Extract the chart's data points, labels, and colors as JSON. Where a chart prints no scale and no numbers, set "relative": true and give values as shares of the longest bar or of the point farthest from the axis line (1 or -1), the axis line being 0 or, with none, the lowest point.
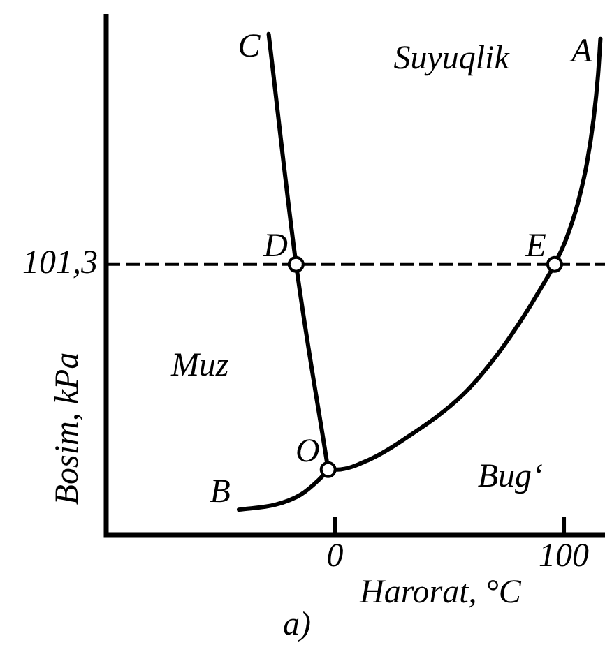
{
  "chart_data": {
    "type": "line",
    "relative": true,
    "xlabel": "Harorat, °C",
    "ylabel": "Bosim, kPa",
    "xlim": [
      -100,
      118
    ],
    "xticks": [
      0,
      100
    ],
    "ref_lines": [
      {
        "axis": "y",
        "value": 0.54,
        "line_style": "dashed",
        "color": "#000000"
      }
    ],
    "series": [
      {
        "color": "#000000",
        "marker": "none",
        "x": [
          -42,
          -26,
          -15,
          -7,
          -3
        ],
        "values": [
          0.05,
          0.06,
          0.08,
          0.11,
          0.13
        ]
      },
      {
        "color": "#000000",
        "marker": "none",
        "x": [
          -29,
          -17,
          -3
        ],
        "values": [
          1,
          0.54,
          0.13
        ]
      },
      {
        "color": "#000000",
        "marker": "none",
        "x": [
          -3,
          1,
          15,
          30,
          56,
          71,
          83,
          91,
          96,
          101,
          106,
          110,
          113,
          115,
          116
        ],
        "values": [
          0.13,
          0.13,
          0.15,
          0.19,
          0.28,
          0.36,
          0.44,
          0.5,
          0.54,
          0.59,
          0.66,
          0.74,
          0.83,
          0.92,
          0.99
        ]
      },
      {
        "type": "scatter",
        "color": "#000000",
        "marker": "circle",
        "x": [
          -17,
          96,
          -3
        ],
        "values": [
          0.54,
          0.54,
          0.13
        ]
      }
    ],
    "annotations": [
      {
        "text": "C",
        "x": -29,
        "y": 1
      },
      {
        "text": "A",
        "x": 116,
        "y": 0.99
      },
      {
        "text": "101,3",
        "x": -100,
        "y": 0.54
      },
      {
        "text": "D",
        "x": -17,
        "y": 0.54
      },
      {
        "text": "E",
        "x": 96,
        "y": 0.54
      },
      {
        "text": "O",
        "x": -3,
        "y": 0.13
      },
      {
        "text": "B",
        "x": -42,
        "y": 0.05
      },
      "Suyuqlik",
      "Muz",
      "Bug‘",
      "a)"
    ]
  }
}
